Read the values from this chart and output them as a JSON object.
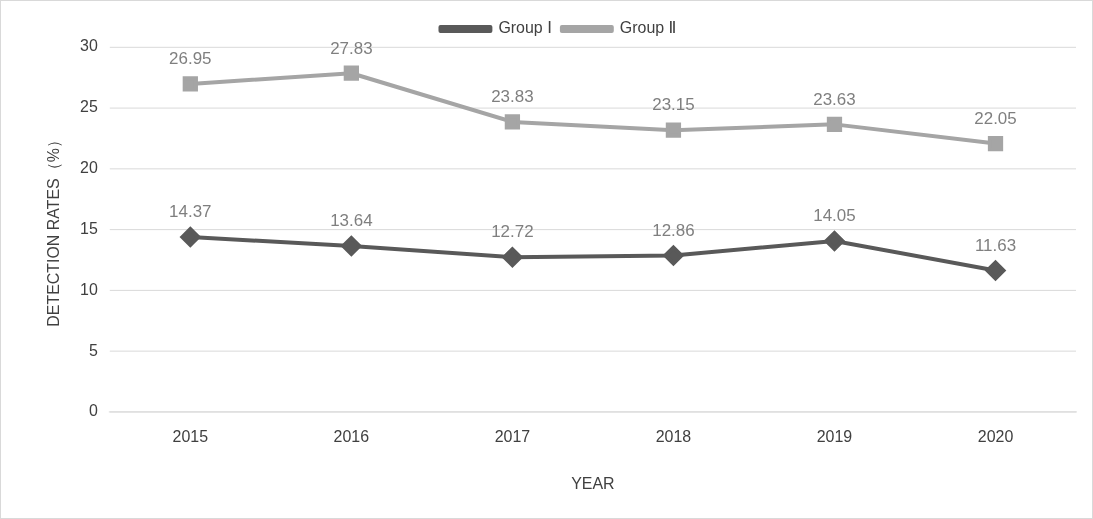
{
  "chart_data": {
    "type": "line",
    "xlabel": "YEAR",
    "ylabel": "DETECTION RATES（%）",
    "categories": [
      "2015",
      "2016",
      "2017",
      "2018",
      "2019",
      "2020"
    ],
    "series": [
      {
        "name": "Group Ⅰ",
        "color": "#595959",
        "marker": "diamond",
        "values": [
          14.37,
          13.64,
          12.72,
          12.86,
          14.05,
          11.63
        ]
      },
      {
        "name": "Group Ⅱ",
        "color": "#a5a5a5",
        "marker": "square",
        "values": [
          26.95,
          27.83,
          23.83,
          23.15,
          23.63,
          22.05
        ]
      }
    ],
    "ylim": [
      0,
      30
    ],
    "yticks": [
      0,
      5,
      10,
      15,
      20,
      25,
      30
    ],
    "grid": "y",
    "legend": "top",
    "data_labels": true
  }
}
